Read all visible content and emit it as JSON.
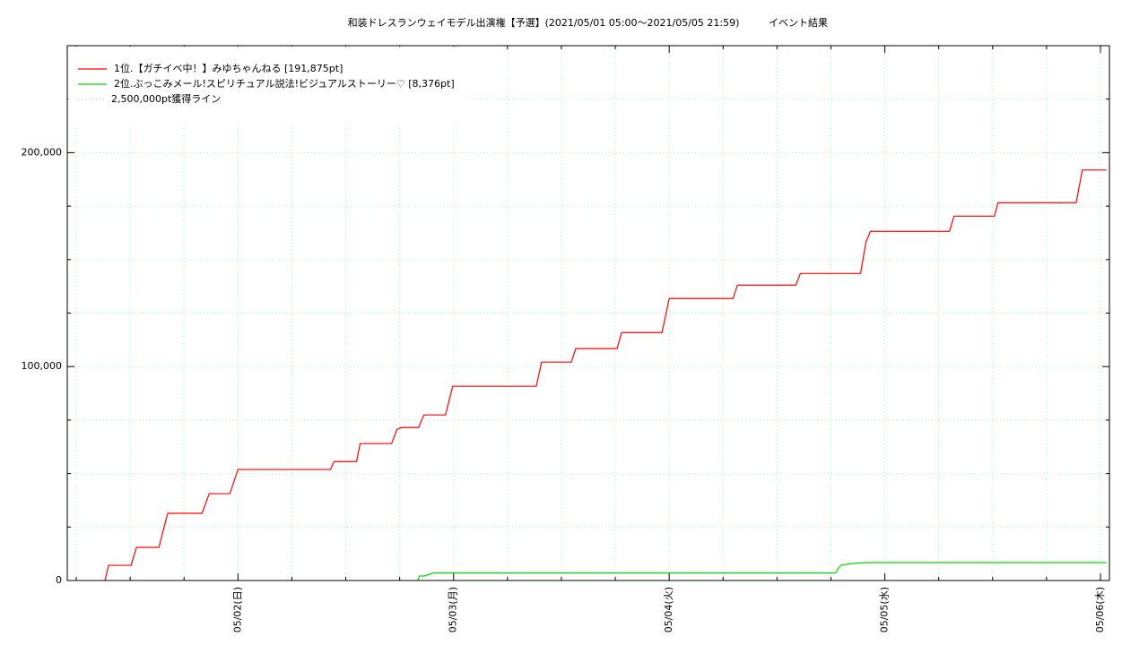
{
  "chart_data": {
    "type": "line",
    "title": "和装ドレスランウェイモデル出演権【予選】(2021/05/01 05:00〜2021/05/05 21:59)",
    "subtitle": "イベント結果",
    "xlim": [
      "2021-05-01T05:00",
      "2021-05-06T01:00"
    ],
    "xticks": [
      {
        "value": "2021-05-02T00:00",
        "label": "05/02(日)"
      },
      {
        "value": "2021-05-03T00:00",
        "label": "05/03(月)"
      },
      {
        "value": "2021-05-04T00:00",
        "label": "05/04(火)"
      },
      {
        "value": "2021-05-05T00:00",
        "label": "05/05(水)"
      },
      {
        "value": "2021-05-06T00:00",
        "label": "05/06(木)"
      }
    ],
    "x_minor_ticks": [
      "2021-05-01T06:00",
      "2021-05-01T12:00",
      "2021-05-01T18:00",
      "2021-05-02T06:00",
      "2021-05-02T12:00",
      "2021-05-02T18:00",
      "2021-05-03T06:00",
      "2021-05-03T12:00",
      "2021-05-03T18:00",
      "2021-05-04T06:00",
      "2021-05-04T12:00",
      "2021-05-04T18:00",
      "2021-05-05T06:00",
      "2021-05-05T12:00",
      "2021-05-05T18:00"
    ],
    "ylim": [
      0,
      250000
    ],
    "yticks": [
      0,
      {
        "value": 100000,
        "label": "100,000"
      },
      {
        "value": 200000,
        "label": "200,000"
      }
    ],
    "y_minor_ticks": [
      25000,
      50000,
      75000,
      125000,
      150000,
      175000,
      225000
    ],
    "grid": true,
    "grid_color": "#a8f0b8",
    "legend": "upper left",
    "series": [
      {
        "name": "1位.【ガチイベ中！】みゆちゃんねる [191,875pt]",
        "color": "#ff0000",
        "x": [
          "2021-05-01T09:12",
          "2021-05-01T09:36",
          "2021-05-01T12:06",
          "2021-05-01T12:42",
          "2021-05-01T15:12",
          "2021-05-01T16:00",
          "2021-05-01T16:12",
          "2021-05-01T20:00",
          "2021-05-01T20:48",
          "2021-05-01T23:06",
          "2021-05-02T00:00",
          "2021-05-02T10:18",
          "2021-05-02T10:42",
          "2021-05-02T13:12",
          "2021-05-02T13:36",
          "2021-05-02T17:06",
          "2021-05-02T17:42",
          "2021-05-02T18:12",
          "2021-05-02T20:06",
          "2021-05-02T20:42",
          "2021-05-02T23:06",
          "2021-05-02T23:54",
          "2021-05-03T09:12",
          "2021-05-03T09:48",
          "2021-05-03T13:06",
          "2021-05-03T13:36",
          "2021-05-03T18:12",
          "2021-05-03T18:42",
          "2021-05-03T23:12",
          "2021-05-04T00:00",
          "2021-05-04T07:06",
          "2021-05-04T07:36",
          "2021-05-04T14:06",
          "2021-05-04T14:36",
          "2021-05-04T21:18",
          "2021-05-04T21:54",
          "2021-05-04T22:24",
          "2021-05-05T07:12",
          "2021-05-05T07:42",
          "2021-05-05T12:12",
          "2021-05-05T12:36",
          "2021-05-05T21:18",
          "2021-05-05T21:59",
          "2021-05-06T00:40"
        ],
        "values": [
          0,
          7100,
          7100,
          15500,
          15500,
          28500,
          31400,
          31400,
          40600,
          40600,
          51900,
          51900,
          55600,
          55600,
          64000,
          64000,
          70700,
          71500,
          71500,
          77400,
          77400,
          90800,
          90800,
          102100,
          102100,
          108400,
          108400,
          115900,
          115900,
          131800,
          131800,
          138100,
          138100,
          143500,
          143500,
          158200,
          163200,
          163200,
          170300,
          170300,
          176600,
          176600,
          191875,
          191875
        ]
      },
      {
        "name": "2位.ぶっこみメール!スピリチュアル説法!ビジュアルストーリー♡ [8,376pt]",
        "color": "#00dd00",
        "x": [
          "2021-05-02T20:00",
          "2021-05-02T20:12",
          "2021-05-02T20:48",
          "2021-05-02T21:42",
          "2021-05-04T18:30",
          "2021-05-04T19:06",
          "2021-05-04T20:30",
          "2021-05-04T21:59",
          "2021-05-06T00:40"
        ],
        "values": [
          0,
          2100,
          2100,
          3500,
          3500,
          7200,
          8000,
          8376,
          8376
        ]
      }
    ],
    "reference_line": {
      "name": "2,500,000pt獲得ライン",
      "color": "#88dd88",
      "style": "dotted"
    }
  }
}
